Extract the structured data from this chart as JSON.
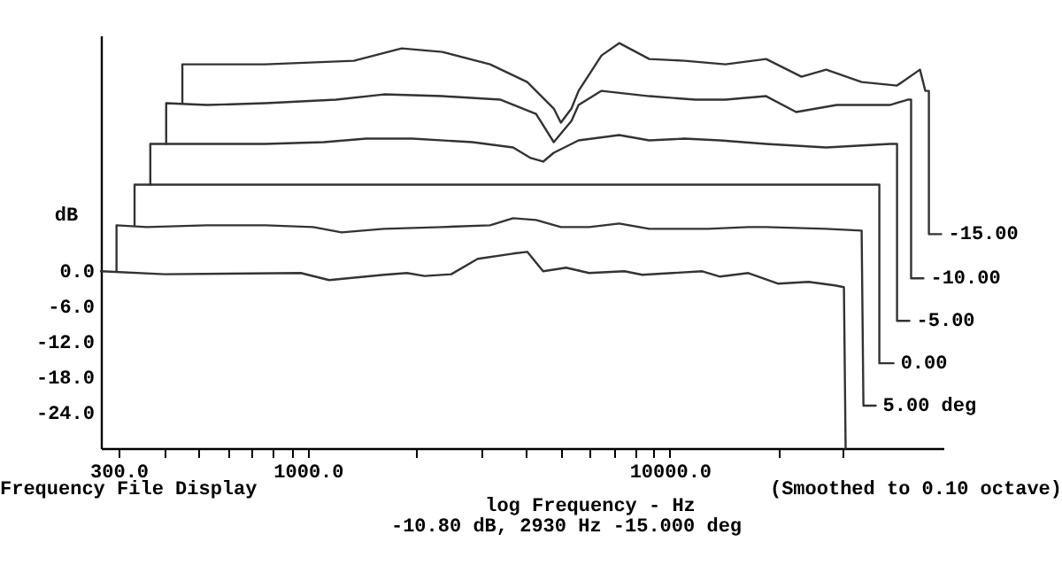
{
  "chart_data": {
    "type": "line",
    "xlabel": "log Frequency - Hz",
    "ylabel": "dB",
    "log": "x",
    "xlim": [
      268,
      57000
    ],
    "ylim": [
      -30,
      40
    ],
    "xticks": [
      {
        "value": 300,
        "label": "300.0"
      },
      {
        "value": 400,
        "label": null
      },
      {
        "value": 500,
        "label": null
      },
      {
        "value": 600,
        "label": null
      },
      {
        "value": 700,
        "label": null
      },
      {
        "value": 800,
        "label": null
      },
      {
        "value": 900,
        "label": null
      },
      {
        "value": 1000,
        "label": "1000.0"
      },
      {
        "value": 2000,
        "label": null
      },
      {
        "value": 3000,
        "label": null
      },
      {
        "value": 4000,
        "label": null
      },
      {
        "value": 5000,
        "label": null
      },
      {
        "value": 6000,
        "label": null
      },
      {
        "value": 7000,
        "label": null
      },
      {
        "value": 8000,
        "label": null
      },
      {
        "value": 9000,
        "label": null
      },
      {
        "value": 10000,
        "label": "10000.0"
      },
      {
        "value": 20000,
        "label": null
      },
      {
        "value": 30000,
        "label": null
      }
    ],
    "yticks": [
      {
        "value": 0,
        "label": "0.0"
      },
      {
        "value": -6,
        "label": "-6.0"
      },
      {
        "value": -12,
        "label": "-12.0"
      },
      {
        "value": -18,
        "label": "-18.0"
      },
      {
        "value": -24,
        "label": "-24.0"
      }
    ],
    "grid": false,
    "legend": false,
    "marker": "none",
    "line_style": "solid",
    "annotations": [
      "Frequency File Display",
      "(Smoothed to 0.10 octave)",
      "-10.80 dB, 2930 Hz  -15.000 deg"
    ],
    "series": [
      {
        "color": "#333333",
        "x": [
          268,
          402,
          956,
          1145,
          1622,
          1878,
          2101,
          2489,
          2946,
          3690,
          4037,
          4467,
          5171,
          5985,
          7497,
          8392,
          10160,
          12300,
          13760,
          16480,
          19950,
          24160,
          28600,
          30270,
          30600
        ],
        "values": [
          0,
          -0.5,
          -0.3,
          -1.5,
          -0.6,
          -0.3,
          -0.8,
          -0.5,
          2.1,
          3,
          3.3,
          0,
          0.6,
          -0.3,
          0,
          -0.6,
          -0.3,
          0,
          -0.9,
          -0.3,
          -2.1,
          -1.8,
          -2.4,
          -2.7,
          -30
        ]
      },
      {
        "name": "5.00 deg",
        "color": "#333333",
        "x": [
          296,
          296,
          359,
          526,
          763,
          1034,
          1239,
          1622,
          2352,
          3187,
          3690,
          4270,
          5000,
          5985,
          7247,
          8775,
          12730,
          16480,
          18450,
          27040,
          33880,
          34270,
          37060
        ],
        "values": [
          0,
          7.8,
          7.5,
          7.8,
          7.8,
          7.5,
          6.6,
          7.2,
          7.5,
          7.8,
          9,
          8.7,
          7.5,
          7.5,
          8.1,
          7.2,
          7.2,
          7.5,
          7.5,
          7.2,
          6.9,
          -22.8,
          -22.8
        ]
      },
      {
        "name": "0.00",
        "color": "#333333",
        "x": [
          332,
          332,
          37920,
          37920,
          41500
        ],
        "values": [
          7.8,
          14.7,
          14.7,
          -15.6,
          -15.6
        ]
      },
      {
        "name": "-5.00",
        "color": "#333333",
        "x": [
          367,
          367,
          526,
          763,
          1106,
          1449,
          1943,
          2849,
          3690,
          4128,
          4467,
          4779,
          5596,
          7247,
          8775,
          10990,
          13760,
          18450,
          27040,
          40550,
          42440,
          42440,
          45900
        ],
        "values": [
          14.7,
          21.6,
          21.6,
          21.6,
          21.9,
          22.5,
          22.5,
          21.9,
          21,
          19.2,
          18.6,
          20.1,
          22.2,
          23.1,
          22.2,
          22.5,
          22.2,
          21.6,
          21,
          21.6,
          21.6,
          -8.4,
          -8.4
        ]
      },
      {
        "name": "-10.00",
        "color": "#333333",
        "x": [
          406,
          406,
          526,
          763,
          1197,
          1622,
          2352,
          3409,
          4270,
          4779,
          5349,
          5596,
          6475,
          8775,
          11760,
          14240,
          18450,
          22340,
          28920,
          40550,
          45380,
          46410,
          46410,
          50200
        ],
        "values": [
          21.6,
          28.5,
          28.2,
          28.5,
          29.1,
          30,
          29.7,
          29.1,
          26.7,
          21.9,
          25.5,
          28.2,
          30.6,
          29.7,
          29.1,
          29.1,
          29.7,
          27,
          28.2,
          28.2,
          29.1,
          29.1,
          -1.2,
          -1.2
        ]
      },
      {
        "name": "-15.00",
        "color": "#333333",
        "x": [
          450,
          450,
          763,
          1340,
          1816,
          2352,
          3187,
          4037,
          4779,
          5000,
          5349,
          5596,
          6475,
          7247,
          8775,
          10990,
          14240,
          18450,
          23110,
          27040,
          33880,
          42440,
          49100,
          50800,
          51970,
          51970,
          56200
        ],
        "values": [
          28.5,
          35.1,
          35.1,
          35.7,
          37.8,
          37.2,
          35.1,
          32.1,
          27.6,
          25.2,
          27.6,
          30.6,
          36.6,
          38.7,
          36,
          35.7,
          35.1,
          36,
          33,
          34.2,
          32.1,
          31.5,
          34.2,
          30.6,
          30.6,
          6.3,
          6.3
        ]
      }
    ]
  }
}
